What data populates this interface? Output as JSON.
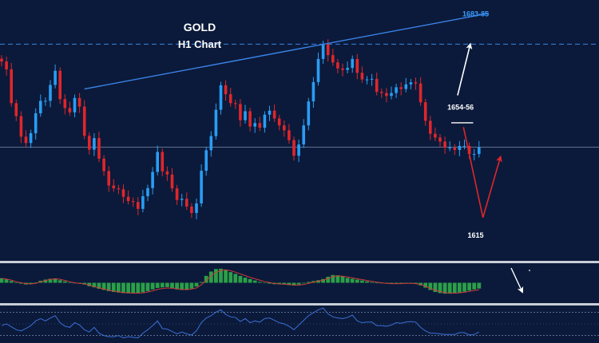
{
  "chart_data": {
    "type": "candlestick",
    "title": "GOLD",
    "subtitle": "H1 Chart",
    "xlabel": "",
    "ylabel": "",
    "ylim": [
      1603,
      1693
    ],
    "grid": false,
    "colors": {
      "background": "#0b1a3a",
      "up": "#2a9df4",
      "down": "#e0262b",
      "trendline": "#3b82e6",
      "resistance_line": "#3b82e6",
      "level_label": "#ffffff",
      "trend_label": "#3b9cff",
      "arrow_up": "#ffffff",
      "arrow_down": "#e0262b",
      "macd_bars": "#2fae4a",
      "macd_signal": "#d23a3a",
      "rsi_line": "#3b6fd6",
      "separator": "#c9ced8"
    },
    "candles": [
      1671.7,
      1669.0,
      1657.3,
      1652.8,
      1645.7,
      1643.5,
      1646.9,
      1653.8,
      1658.1,
      1658.1,
      1663.6,
      1668.5,
      1658.7,
      1655.6,
      1654.1,
      1659.1,
      1656.1,
      1646.0,
      1641.2,
      1645.2,
      1638.1,
      1633.8,
      1628.8,
      1627.8,
      1627.5,
      1624.9,
      1623.4,
      1623.1,
      1620.7,
      1625.1,
      1627.9,
      1633.5,
      1640.4,
      1633.7,
      1632.6,
      1627.8,
      1623.8,
      1624.2,
      1621.5,
      1619.3,
      1622.6,
      1633.9,
      1641.0,
      1645.9,
      1655.0,
      1663.5,
      1660.4,
      1657.3,
      1657.0,
      1651.4,
      1654.5,
      1649.2,
      1650.4,
      1648.8,
      1653.3,
      1654.7,
      1652.0,
      1649.6,
      1647.9,
      1644.5,
      1639.1,
      1643.0,
      1649.6,
      1657.9,
      1664.6,
      1672.6,
      1677.7,
      1673.9,
      1671.4,
      1669.3,
      1668.8,
      1669.5,
      1672.6,
      1667.8,
      1665.5,
      1665.5,
      1665.7,
      1661.2,
      1660.8,
      1659.8,
      1660.8,
      1662.8,
      1662.2,
      1663.8,
      1664.5,
      1664.1,
      1657.6,
      1651.2,
      1646.7,
      1645.4,
      1644.0,
      1641.9,
      1641.9,
      1641.1,
      1642.5,
      1642.5,
      1639.7,
      1639.7,
      1642.0
    ],
    "horizontal_lines": [
      1677.7,
      1642.1
    ],
    "trendline": [
      {
        "x": 17,
        "y": 1662.2
      },
      {
        "x": 100,
        "y": 1688.4
      }
    ],
    "level_labels": [
      {
        "text": "1683-85",
        "x": 97.3,
        "y": 1687.3
      },
      {
        "text": "1654-56",
        "x": 94.2,
        "y": 1655.0
      },
      {
        "text": "1615",
        "x": 97.3,
        "y": 1610.7
      }
    ],
    "arrows": [
      {
        "color": "up",
        "from": [
          93.6,
          1660.0
        ],
        "to": [
          96.2,
          1677.7
        ]
      },
      {
        "color": "down",
        "from": [
          94.8,
          1649.0
        ],
        "to": [
          98.8,
          1617.7
        ]
      },
      {
        "color": "down",
        "from": [
          98.8,
          1617.7
        ],
        "to": [
          102.4,
          1638.7
        ]
      }
    ],
    "macd": [
      3.2,
      2.4,
      1.2,
      0.2,
      -0.6,
      -1.2,
      -0.8,
      0.2,
      1.4,
      2.2,
      2.8,
      3.0,
      1.8,
      1.0,
      0.2,
      -0.4,
      -0.6,
      -1.2,
      -2.4,
      -3.2,
      -4.2,
      -5.0,
      -5.8,
      -6.4,
      -6.8,
      -7.2,
      -7.4,
      -7.2,
      -7.0,
      -6.6,
      -5.8,
      -4.6,
      -3.6,
      -3.2,
      -3.0,
      -3.6,
      -4.6,
      -5.0,
      -4.8,
      -4.0,
      -2.6,
      0.6,
      4.8,
      7.8,
      9.6,
      9.8,
      8.8,
      7.4,
      6.2,
      4.8,
      3.6,
      2.6,
      1.6,
      0.6,
      0.0,
      -0.6,
      -1.0,
      -1.0,
      -1.2,
      -1.6,
      -1.8,
      -1.2,
      -0.4,
      0.6,
      1.2,
      1.8,
      2.6,
      4.2,
      5.4,
      5.2,
      4.4,
      3.4,
      2.8,
      2.2,
      1.6,
      1.0,
      0.4,
      0.0,
      -0.4,
      -0.6,
      -0.8,
      -0.6,
      -0.4,
      -0.2,
      -0.2,
      -0.6,
      -1.8,
      -3.4,
      -5.0,
      -6.4,
      -7.2,
      -7.6,
      -7.6,
      -7.2,
      -6.8,
      -6.2,
      -5.4,
      -4.6,
      -4.0
    ],
    "macd_signal": [
      3.0,
      2.6,
      1.8,
      0.8,
      0.0,
      -0.6,
      -0.8,
      -0.4,
      0.6,
      1.6,
      2.4,
      2.8,
      2.4,
      1.6,
      0.8,
      0.0,
      -0.4,
      -0.8,
      -1.6,
      -2.6,
      -3.6,
      -4.4,
      -5.2,
      -5.8,
      -6.4,
      -6.8,
      -7.0,
      -7.2,
      -7.2,
      -7.0,
      -6.4,
      -5.6,
      -4.6,
      -4.0,
      -3.6,
      -3.8,
      -4.2,
      -4.6,
      -4.8,
      -4.4,
      -3.6,
      -1.4,
      1.6,
      4.8,
      7.2,
      8.6,
      9.0,
      8.4,
      7.4,
      6.2,
      5.0,
      3.8,
      2.8,
      1.8,
      0.8,
      0.2,
      -0.4,
      -0.8,
      -1.0,
      -1.2,
      -1.6,
      -1.6,
      -1.2,
      -0.4,
      0.4,
      1.2,
      1.8,
      3.0,
      4.2,
      4.8,
      4.6,
      4.0,
      3.4,
      2.8,
      2.2,
      1.6,
      1.0,
      0.4,
      0.0,
      -0.4,
      -0.6,
      -0.6,
      -0.6,
      -0.4,
      -0.4,
      -0.6,
      -1.2,
      -2.4,
      -3.8,
      -5.2,
      -6.2,
      -6.8,
      -7.2,
      -7.2,
      -7.0,
      -6.6,
      -6.0,
      -5.4,
      -4.8
    ],
    "rsi": [
      47,
      50,
      45,
      40,
      38,
      42,
      47,
      55,
      59,
      55,
      60,
      64,
      52,
      46,
      44,
      52,
      48,
      40,
      36,
      44,
      34,
      30,
      28,
      28,
      30,
      26,
      28,
      27,
      26,
      34,
      40,
      47,
      55,
      42,
      41,
      37,
      33,
      36,
      33,
      31,
      38,
      52,
      60,
      64,
      70,
      74,
      66,
      62,
      61,
      54,
      59,
      52,
      55,
      53,
      59,
      60,
      56,
      52,
      50,
      46,
      40,
      48,
      56,
      64,
      69,
      74,
      77,
      67,
      62,
      60,
      59,
      61,
      65,
      55,
      52,
      53,
      53,
      47,
      47,
      46,
      48,
      52,
      51,
      53,
      54,
      53,
      44,
      38,
      34,
      34,
      33,
      32,
      32,
      32,
      35,
      35,
      31,
      32,
      36
    ]
  }
}
